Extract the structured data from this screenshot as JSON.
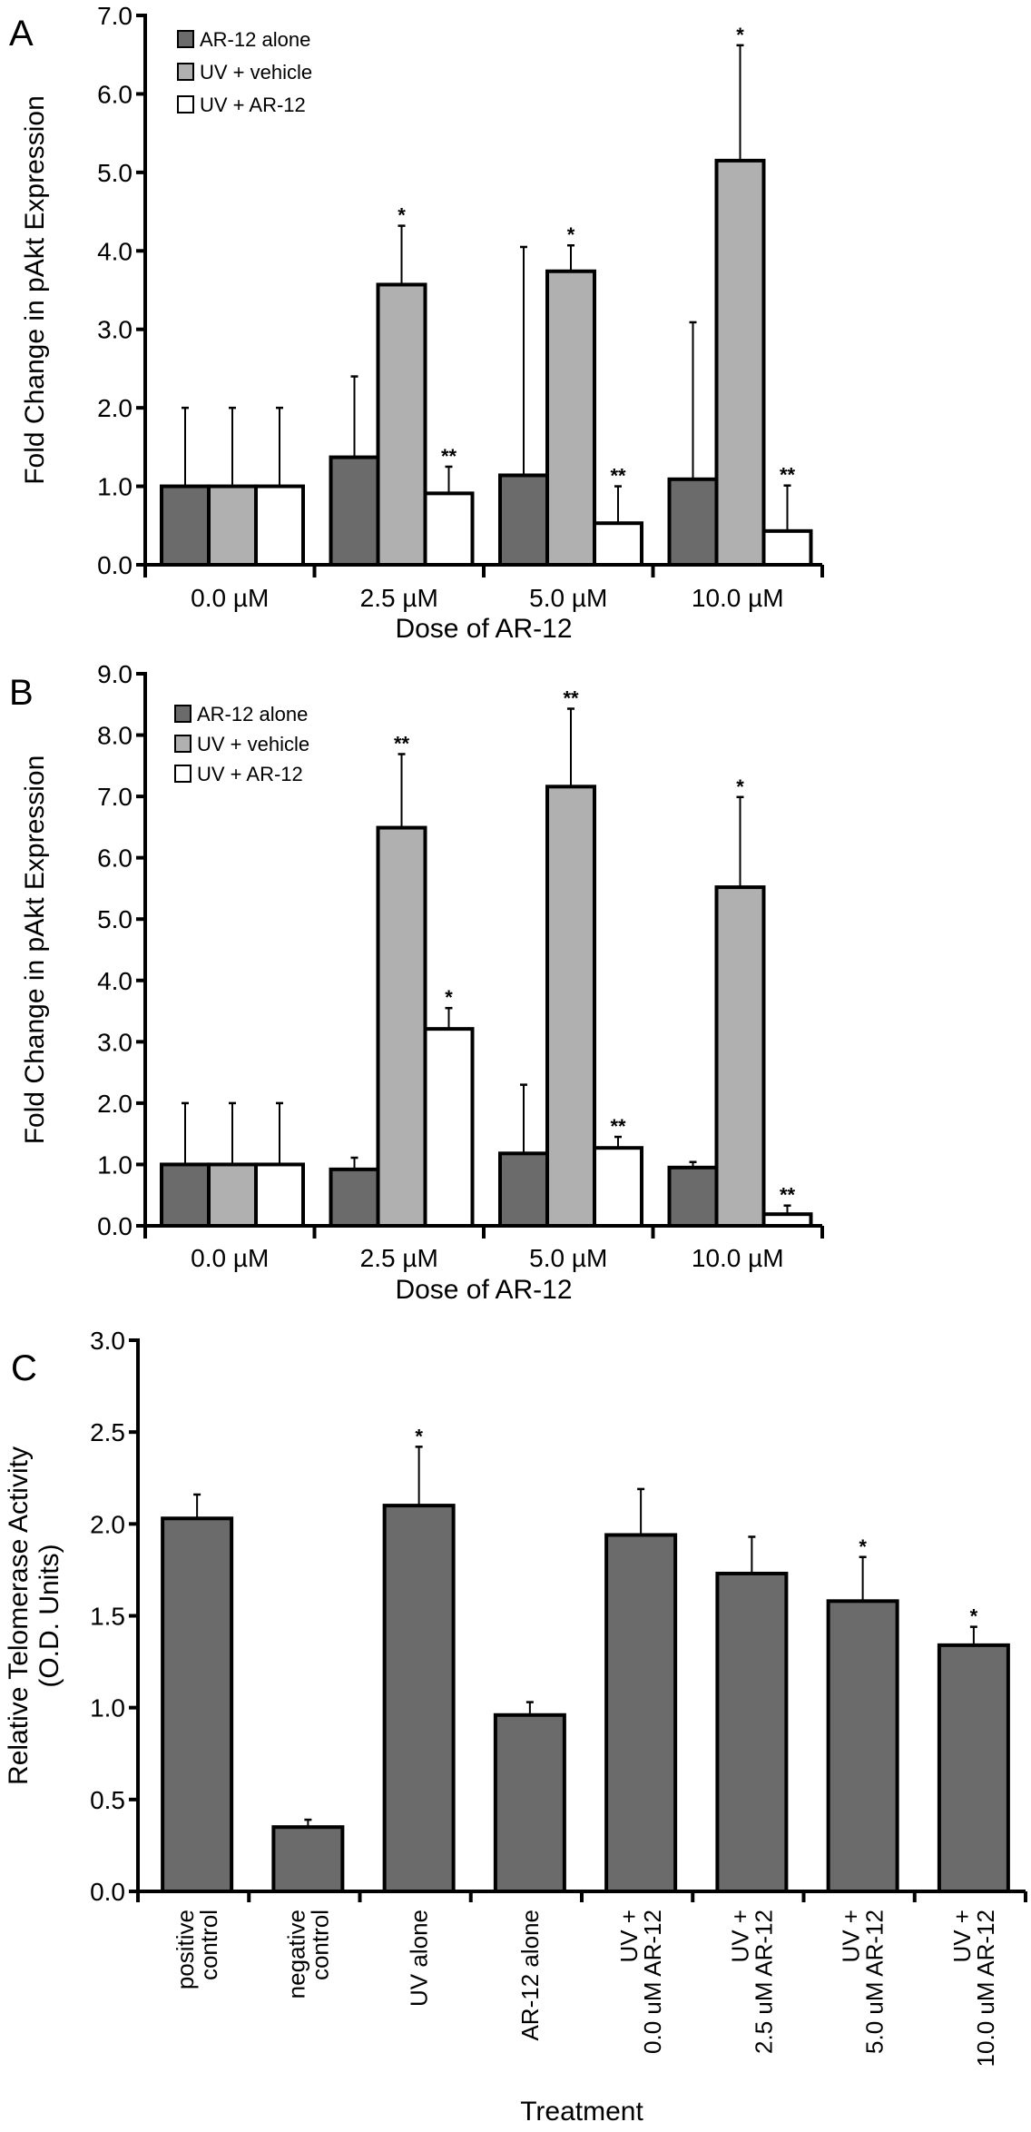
{
  "colors": {
    "ar12_alone": "#6b6b6b",
    "uv_vehicle": "#b0b0b0",
    "uv_ar12": "#ffffff",
    "telomerase_bar": "#6b6b6b",
    "stroke": "#000000"
  },
  "chart_data": [
    {
      "panel": "A",
      "type": "bar",
      "title": "",
      "xlabel": "Dose of AR-12",
      "ylabel": "Fold Change in pAkt Expression",
      "ylim": [
        0,
        7
      ],
      "yticks": [
        "0.0",
        "1.0",
        "2.0",
        "3.0",
        "4.0",
        "5.0",
        "6.0",
        "7.0"
      ],
      "categories": [
        "0.0 µM",
        "2.5 µM",
        "5.0 µM",
        "10.0 µM"
      ],
      "legend_position": "top-left",
      "grid": false,
      "series": [
        {
          "name": "AR-12 alone",
          "color_key": "ar12_alone",
          "values": [
            1.0,
            1.37,
            1.14,
            1.09
          ],
          "error_upper": [
            2.0,
            2.4,
            4.05,
            3.09
          ],
          "significance": [
            "",
            "",
            "",
            ""
          ]
        },
        {
          "name": "UV + vehicle",
          "color_key": "uv_vehicle",
          "values": [
            1.0,
            3.57,
            3.74,
            5.15
          ],
          "error_upper": [
            2.0,
            4.32,
            4.07,
            6.62
          ],
          "significance": [
            "",
            "*",
            "*",
            "*"
          ]
        },
        {
          "name": "UV + AR-12",
          "color_key": "uv_ar12",
          "values": [
            1.0,
            0.91,
            0.53,
            0.43
          ],
          "error_upper": [
            2.0,
            1.25,
            1.0,
            1.01
          ],
          "significance": [
            "",
            "**",
            "**",
            "**"
          ]
        }
      ]
    },
    {
      "panel": "B",
      "type": "bar",
      "title": "",
      "xlabel": "Dose of AR-12",
      "ylabel": "Fold Change in pAkt Expression",
      "ylim": [
        0,
        9
      ],
      "yticks": [
        "0.0",
        "1.0",
        "2.0",
        "3.0",
        "4.0",
        "5.0",
        "6.0",
        "7.0",
        "8.0",
        "9.0"
      ],
      "categories": [
        "0.0 µM",
        "2.5 µM",
        "5.0 µM",
        "10.0 µM"
      ],
      "legend_position": "top-left",
      "grid": false,
      "series": [
        {
          "name": "AR-12 alone",
          "color_key": "ar12_alone",
          "values": [
            1.0,
            0.92,
            1.18,
            0.95
          ],
          "error_upper": [
            2.0,
            1.11,
            2.3,
            1.04
          ],
          "significance": [
            "",
            "",
            "",
            ""
          ]
        },
        {
          "name": "UV + vehicle",
          "color_key": "uv_vehicle",
          "values": [
            1.0,
            6.49,
            7.16,
            5.52
          ],
          "error_upper": [
            2.0,
            7.69,
            8.43,
            6.99
          ],
          "significance": [
            "",
            "**",
            "**",
            "*"
          ]
        },
        {
          "name": "UV + AR-12",
          "color_key": "uv_ar12",
          "values": [
            1.0,
            3.21,
            1.27,
            0.19
          ],
          "error_upper": [
            2.0,
            3.55,
            1.45,
            0.33
          ],
          "significance": [
            "",
            "*",
            "**",
            "**"
          ]
        }
      ]
    },
    {
      "panel": "C",
      "type": "bar",
      "title": "",
      "xlabel": "Treatment",
      "ylabel_lines": [
        "Relative Telomerase Activity",
        "(O.D. Units)"
      ],
      "ylim": [
        0,
        3
      ],
      "yticks": [
        "0.0",
        "0.5",
        "1.0",
        "1.5",
        "2.0",
        "2.5",
        "3.0"
      ],
      "categories": [
        [
          "positive",
          "control"
        ],
        [
          "negative",
          "control"
        ],
        [
          "UV alone"
        ],
        [
          "AR-12 alone"
        ],
        [
          "UV +",
          "0.0 uM AR-12"
        ],
        [
          "UV +",
          "2.5 uM AR-12"
        ],
        [
          "UV +",
          "5.0 uM AR-12"
        ],
        [
          "UV +",
          "10.0 uM AR-12"
        ]
      ],
      "grid": false,
      "series": [
        {
          "name": "Relative Telomerase Activity",
          "color_key": "telomerase_bar",
          "values": [
            2.03,
            0.35,
            2.1,
            0.96,
            1.94,
            1.73,
            1.58,
            1.34
          ],
          "error_upper": [
            2.16,
            0.39,
            2.42,
            1.03,
            2.19,
            1.93,
            1.82,
            1.44
          ],
          "significance": [
            "",
            "",
            "*",
            "",
            "",
            "",
            "*",
            "*"
          ]
        }
      ]
    }
  ]
}
